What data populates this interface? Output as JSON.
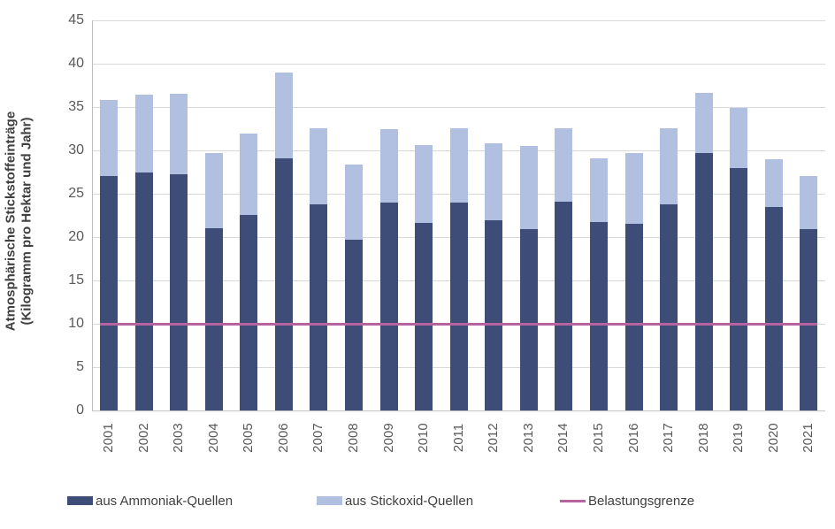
{
  "chart_data": {
    "type": "bar",
    "stacked": true,
    "title": "",
    "ylabel_line1": "Atmosphärische Stickstoffeinträge",
    "ylabel_line2": "(Kilogramm pro Hektar und Jahr)",
    "categories": [
      "2001",
      "2002",
      "2003",
      "2004",
      "2005",
      "2006",
      "2007",
      "2008",
      "2009",
      "2010",
      "2011",
      "2012",
      "2013",
      "2014",
      "2015",
      "2016",
      "2017",
      "2018",
      "2019",
      "2020",
      "2021"
    ],
    "series": [
      {
        "name": "aus Ammoniak-Quellen",
        "color": "#3E4C78",
        "values": [
          27.0,
          27.5,
          27.2,
          21.0,
          22.5,
          29.1,
          23.8,
          19.7,
          24.0,
          21.6,
          24.0,
          21.9,
          20.9,
          24.1,
          21.7,
          21.5,
          23.8,
          29.7,
          28.0,
          23.5,
          20.9
        ]
      },
      {
        "name": "aus Stickoxid-Quellen",
        "color": "#B1BFE1",
        "values": [
          8.8,
          8.9,
          9.3,
          8.7,
          9.4,
          9.9,
          8.7,
          8.7,
          8.4,
          9.0,
          8.5,
          8.9,
          9.6,
          8.4,
          7.4,
          8.2,
          8.7,
          6.9,
          6.9,
          5.5,
          6.1
        ]
      }
    ],
    "totals": [
      35.8,
      36.4,
      36.5,
      29.7,
      31.9,
      39.0,
      32.5,
      28.4,
      32.4,
      30.6,
      32.5,
      30.8,
      30.5,
      32.5,
      29.1,
      29.7,
      32.5,
      36.6,
      34.9,
      29.0,
      27.0
    ],
    "reference_line": {
      "name": "Belastungsgrenze",
      "value": 10,
      "color": "#B7639F"
    },
    "ylim": [
      0,
      45
    ],
    "ytick_step": 5,
    "yticks": [
      0,
      5,
      10,
      15,
      20,
      25,
      30,
      35,
      40,
      45
    ],
    "grid": true,
    "legend_position": "bottom",
    "colors": {
      "axis_text": "#595959",
      "title_text": "#404040",
      "gridline": "#D9D9D9",
      "axis_line": "#BFBFBF"
    }
  }
}
